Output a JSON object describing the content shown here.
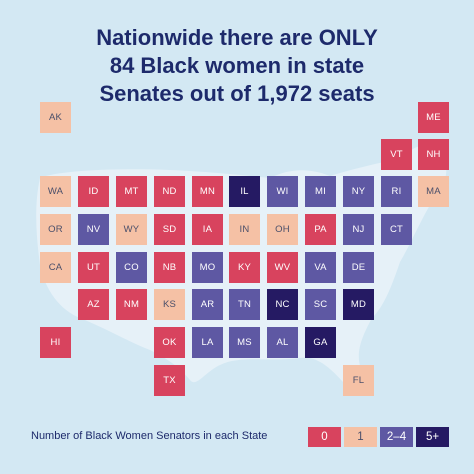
{
  "title_lines": [
    "Nationwide there are ONLY",
    "84 Black women in state",
    "Senates out of 1,972 seats"
  ],
  "colors": {
    "background": "#d3e8f3",
    "map_shape": "#e6f1f8",
    "title": "#1d2a6b",
    "zero": "#d8435e",
    "one": "#f5c1a5",
    "two_to_four": "#5e58a3",
    "five_plus": "#251a63"
  },
  "states": [
    {
      "abbr": "AK",
      "cat": "1"
    },
    {
      "abbr": "ME",
      "cat": "0"
    },
    {
      "abbr": "VT",
      "cat": "0"
    },
    {
      "abbr": "NH",
      "cat": "0"
    },
    {
      "abbr": "WA",
      "cat": "1"
    },
    {
      "abbr": "ID",
      "cat": "0"
    },
    {
      "abbr": "MT",
      "cat": "0"
    },
    {
      "abbr": "ND",
      "cat": "0"
    },
    {
      "abbr": "MN",
      "cat": "0"
    },
    {
      "abbr": "IL",
      "cat": "5+"
    },
    {
      "abbr": "WI",
      "cat": "2-4"
    },
    {
      "abbr": "MI",
      "cat": "2-4"
    },
    {
      "abbr": "NY",
      "cat": "2-4"
    },
    {
      "abbr": "RI",
      "cat": "2-4"
    },
    {
      "abbr": "MA",
      "cat": "1"
    },
    {
      "abbr": "OR",
      "cat": "1"
    },
    {
      "abbr": "NV",
      "cat": "2-4"
    },
    {
      "abbr": "WY",
      "cat": "1"
    },
    {
      "abbr": "SD",
      "cat": "0"
    },
    {
      "abbr": "IA",
      "cat": "0"
    },
    {
      "abbr": "IN",
      "cat": "1"
    },
    {
      "abbr": "OH",
      "cat": "1"
    },
    {
      "abbr": "PA",
      "cat": "0"
    },
    {
      "abbr": "NJ",
      "cat": "2-4"
    },
    {
      "abbr": "CT",
      "cat": "2-4"
    },
    {
      "abbr": "CA",
      "cat": "1"
    },
    {
      "abbr": "UT",
      "cat": "0"
    },
    {
      "abbr": "CO",
      "cat": "2-4"
    },
    {
      "abbr": "NB",
      "cat": "0"
    },
    {
      "abbr": "MO",
      "cat": "2-4"
    },
    {
      "abbr": "KY",
      "cat": "0"
    },
    {
      "abbr": "WV",
      "cat": "0"
    },
    {
      "abbr": "VA",
      "cat": "2-4"
    },
    {
      "abbr": "DE",
      "cat": "2-4"
    },
    {
      "abbr": "AZ",
      "cat": "0"
    },
    {
      "abbr": "NM",
      "cat": "0"
    },
    {
      "abbr": "KS",
      "cat": "1"
    },
    {
      "abbr": "AR",
      "cat": "2-4"
    },
    {
      "abbr": "TN",
      "cat": "2-4"
    },
    {
      "abbr": "NC",
      "cat": "5+"
    },
    {
      "abbr": "SC",
      "cat": "2-4"
    },
    {
      "abbr": "MD",
      "cat": "5+"
    },
    {
      "abbr": "HI",
      "cat": "0"
    },
    {
      "abbr": "OK",
      "cat": "0"
    },
    {
      "abbr": "LA",
      "cat": "2-4"
    },
    {
      "abbr": "MS",
      "cat": "2-4"
    },
    {
      "abbr": "AL",
      "cat": "2-4"
    },
    {
      "abbr": "GA",
      "cat": "5+"
    },
    {
      "abbr": "TX",
      "cat": "0"
    },
    {
      "abbr": "FL",
      "cat": "1"
    }
  ],
  "legend": {
    "title": "Number of Black Women Senators in each State",
    "items": [
      {
        "label": "0",
        "cat": "0"
      },
      {
        "label": "1",
        "cat": "1"
      },
      {
        "label": "2–4",
        "cat": "2-4"
      },
      {
        "label": "5+",
        "cat": "5+"
      }
    ]
  }
}
